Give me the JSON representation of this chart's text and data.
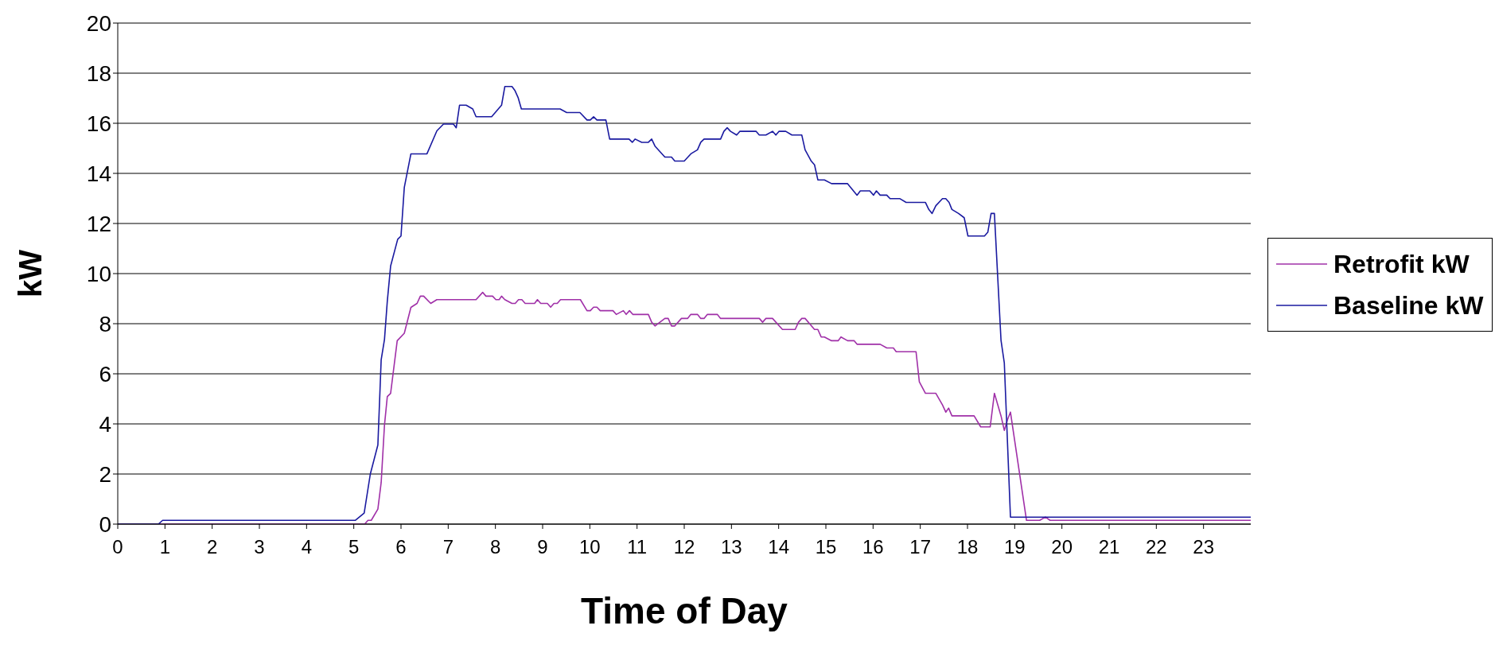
{
  "chart_data": {
    "type": "line",
    "xlabel": "Time of Day",
    "ylabel": "kW",
    "xlim": [
      0,
      24
    ],
    "xticks": [
      0,
      1,
      2,
      3,
      4,
      5,
      6,
      7,
      8,
      9,
      10,
      11,
      12,
      13,
      14,
      15,
      16,
      17,
      18,
      19,
      20,
      21,
      22,
      23
    ],
    "ylim": [
      0,
      20
    ],
    "yticks": [
      0,
      2,
      4,
      6,
      8,
      10,
      12,
      14,
      16,
      18,
      20
    ],
    "grid": "y",
    "legend": "right",
    "series": [
      {
        "name": "Retrofit kW",
        "color": "#a030a8",
        "x": [
          0,
          5.23,
          5.3,
          5.37,
          5.51,
          5.58,
          5.65,
          5.71,
          5.78,
          5.92,
          6.07,
          6.21,
          6.34,
          6.41,
          6.48,
          6.63,
          6.76,
          7.59,
          7.73,
          7.8,
          7.94,
          8.01,
          8.08,
          8.13,
          8.2,
          8.35,
          8.42,
          8.49,
          8.56,
          8.63,
          8.83,
          8.89,
          8.96,
          9.1,
          9.17,
          9.24,
          9.31,
          9.38,
          9.8,
          9.94,
          10.01,
          10.08,
          10.15,
          10.22,
          10.49,
          10.56,
          10.71,
          10.77,
          10.84,
          10.91,
          11.24,
          11.31,
          11.38,
          11.59,
          11.66,
          11.73,
          11.8,
          11.94,
          12.07,
          12.14,
          12.28,
          12.35,
          12.42,
          12.49,
          12.7,
          12.77,
          13.59,
          13.66,
          13.73,
          13.87,
          14.08,
          14.35,
          14.42,
          14.49,
          14.56,
          14.76,
          14.83,
          14.9,
          14.97,
          15.12,
          15.26,
          15.32,
          15.46,
          15.6,
          15.66,
          16.15,
          16.29,
          16.43,
          16.49,
          16.91,
          16.98,
          17.11,
          17.33,
          17.47,
          17.54,
          17.6,
          17.67,
          18.14,
          18.28,
          18.48,
          18.57,
          18.71,
          18.78,
          18.85,
          18.91,
          19.25,
          19.53,
          19.65,
          19.75,
          24
        ],
        "values": [
          0,
          0,
          0.15,
          0.15,
          0.6,
          1.66,
          3.95,
          5.09,
          5.22,
          7.32,
          7.62,
          8.65,
          8.81,
          9.1,
          9.1,
          8.81,
          8.96,
          8.96,
          9.25,
          9.1,
          9.1,
          8.96,
          8.96,
          9.1,
          8.96,
          8.81,
          8.81,
          8.96,
          8.96,
          8.81,
          8.81,
          8.96,
          8.81,
          8.81,
          8.66,
          8.81,
          8.81,
          8.96,
          8.96,
          8.52,
          8.52,
          8.66,
          8.66,
          8.52,
          8.52,
          8.37,
          8.52,
          8.37,
          8.52,
          8.37,
          8.37,
          8.06,
          7.91,
          8.21,
          8.21,
          7.91,
          7.91,
          8.21,
          8.21,
          8.37,
          8.37,
          8.21,
          8.21,
          8.37,
          8.37,
          8.21,
          8.21,
          8.06,
          8.21,
          8.21,
          7.77,
          7.77,
          8.06,
          8.21,
          8.21,
          7.77,
          7.77,
          7.47,
          7.47,
          7.32,
          7.32,
          7.47,
          7.32,
          7.32,
          7.18,
          7.18,
          7.03,
          7.03,
          6.88,
          6.88,
          5.68,
          5.22,
          5.22,
          4.76,
          4.47,
          4.63,
          4.32,
          4.32,
          3.88,
          3.88,
          5.22,
          4.32,
          3.74,
          4.18,
          4.47,
          0.15,
          0.15,
          0.28,
          0.15,
          0.15
        ]
      },
      {
        "name": "Baseline kW",
        "color": "#1a1aa0",
        "x": [
          0,
          0.86,
          0.95,
          5.03,
          5.22,
          5.35,
          5.51,
          5.58,
          5.65,
          5.71,
          5.78,
          5.93,
          6,
          6.07,
          6.21,
          6.55,
          6.76,
          6.9,
          7.11,
          7.17,
          7.24,
          7.38,
          7.52,
          7.59,
          7.92,
          8.13,
          8.2,
          8.35,
          8.41,
          8.48,
          8.55,
          9.37,
          9.51,
          9.79,
          9.94,
          10.01,
          10.08,
          10.15,
          10.34,
          10.42,
          10.83,
          10.9,
          10.96,
          11.1,
          11.24,
          11.31,
          11.38,
          11.59,
          11.73,
          11.8,
          12,
          12.14,
          12.28,
          12.35,
          12.42,
          12.77,
          12.84,
          12.91,
          12.98,
          13.11,
          13.18,
          13.52,
          13.59,
          13.73,
          13.87,
          13.94,
          14.01,
          14.15,
          14.28,
          14.49,
          14.56,
          14.69,
          14.76,
          14.83,
          14.97,
          15.12,
          15.46,
          15.66,
          15.73,
          15.93,
          16.01,
          16.07,
          16.15,
          16.29,
          16.36,
          16.57,
          16.7,
          17.11,
          17.18,
          17.25,
          17.33,
          17.47,
          17.54,
          17.61,
          17.67,
          17.81,
          17.93,
          18.01,
          18.36,
          18.43,
          18.5,
          18.57,
          18.71,
          18.78,
          18.91,
          24
        ],
        "values": [
          0,
          0,
          0.15,
          0.15,
          0.44,
          2,
          3.16,
          6.56,
          7.37,
          8.9,
          10.3,
          11.37,
          11.5,
          13.44,
          14.78,
          14.78,
          15.7,
          15.97,
          15.97,
          15.82,
          16.72,
          16.72,
          16.57,
          16.26,
          16.26,
          16.72,
          17.47,
          17.47,
          17.32,
          17.03,
          16.57,
          16.57,
          16.43,
          16.43,
          16.13,
          16.13,
          16.26,
          16.13,
          16.13,
          15.37,
          15.37,
          15.24,
          15.37,
          15.24,
          15.24,
          15.37,
          15.09,
          14.65,
          14.65,
          14.49,
          14.49,
          14.78,
          14.94,
          15.24,
          15.37,
          15.37,
          15.68,
          15.82,
          15.68,
          15.53,
          15.68,
          15.68,
          15.53,
          15.53,
          15.68,
          15.53,
          15.68,
          15.68,
          15.53,
          15.53,
          14.94,
          14.49,
          14.34,
          13.74,
          13.74,
          13.59,
          13.59,
          13.13,
          13.3,
          13.3,
          13.13,
          13.3,
          13.13,
          13.13,
          12.99,
          12.99,
          12.84,
          12.84,
          12.56,
          12.4,
          12.71,
          12.99,
          12.99,
          12.84,
          12.56,
          12.4,
          12.23,
          11.5,
          11.5,
          11.65,
          12.4,
          12.4,
          7.34,
          6.43,
          0.28,
          0.28
        ]
      }
    ]
  }
}
